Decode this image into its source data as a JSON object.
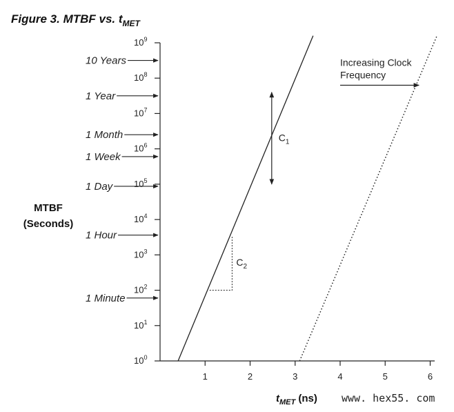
{
  "figure": {
    "title_prefix": "Figure 3. MTBF vs. t",
    "title_sub": "MET",
    "watermark": "www. hex55. com"
  },
  "chart_data": {
    "type": "line",
    "title": "Figure 3. MTBF vs. tMET",
    "xlabel": {
      "main": "t",
      "sub": "MET",
      "unit": " (ns)"
    },
    "ylabel": [
      "MTBF",
      "(Seconds)"
    ],
    "xlim": [
      0,
      6.1
    ],
    "ylim_log10": [
      0,
      9
    ],
    "y_scale": "log",
    "x_ticks": [
      1,
      2,
      3,
      4,
      5,
      6
    ],
    "y_ticks": [
      {
        "base": "10",
        "exp": "0"
      },
      {
        "base": "10",
        "exp": "1"
      },
      {
        "base": "10",
        "exp": "2"
      },
      {
        "base": "10",
        "exp": "3"
      },
      {
        "base": "10",
        "exp": "4"
      },
      {
        "base": "10",
        "exp": "5"
      },
      {
        "base": "10",
        "exp": "6"
      },
      {
        "base": "10",
        "exp": "7"
      },
      {
        "base": "10",
        "exp": "8"
      },
      {
        "base": "10",
        "exp": "9"
      }
    ],
    "time_markers": [
      {
        "label": "10 Years",
        "log10_seconds": 8.5
      },
      {
        "label": "1 Year",
        "log10_seconds": 7.5
      },
      {
        "label": "1 Month",
        "log10_seconds": 6.4
      },
      {
        "label": "1 Week",
        "log10_seconds": 5.78
      },
      {
        "label": "1 Day",
        "log10_seconds": 4.94
      },
      {
        "label": "1 Hour",
        "log10_seconds": 3.56
      },
      {
        "label": "1 Minute",
        "log10_seconds": 1.78
      }
    ],
    "series": [
      {
        "style": "solid",
        "x": [
          0.4,
          3.4
        ],
        "log10_y": [
          0,
          9.2
        ]
      },
      {
        "style": "dotted",
        "x": [
          3.1,
          6.15
        ],
        "log10_y": [
          0,
          9.2
        ]
      }
    ],
    "annotations": {
      "c1": {
        "main": "C",
        "sub": "1",
        "x": 2.48,
        "log10_y_range": [
          5.0,
          7.6
        ]
      },
      "c2": {
        "main": "C",
        "sub": "2",
        "x_range": [
          1.1,
          1.6
        ],
        "log10_y_range": [
          2.0,
          3.55
        ]
      },
      "shift_text": [
        "Increasing Clock",
        "Frequency"
      ],
      "shift_arrow_x": [
        4.0,
        5.75
      ],
      "shift_arrow_log10_y": 7.8
    }
  }
}
